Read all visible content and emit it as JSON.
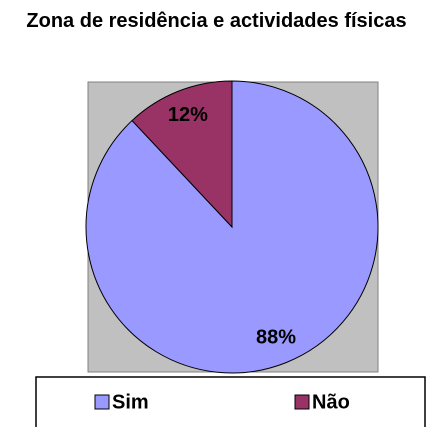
{
  "chart_data": {
    "type": "pie",
    "title": "Zona de residência e actividades físicas",
    "categories": [
      "Sim",
      "Não"
    ],
    "values": [
      88,
      12
    ],
    "value_labels": [
      "88%",
      "12%"
    ],
    "colors": [
      "#9999ff",
      "#993366"
    ],
    "legend": "bottom"
  }
}
